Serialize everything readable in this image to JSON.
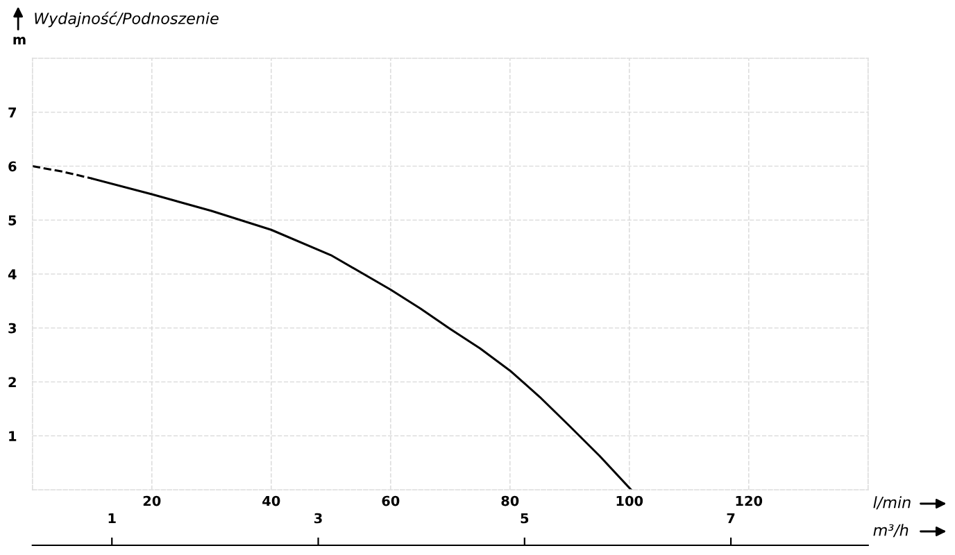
{
  "chart_data": {
    "type": "line",
    "title": "Wydajność/Podnoszenie",
    "ylabel": "m",
    "xlabel": "l/min",
    "x2label": "m³/h",
    "series": [
      {
        "color": "#000000",
        "line_style": "dashed",
        "x": [
          0,
          5,
          10
        ],
        "values": [
          6.0,
          5.9,
          5.77
        ]
      },
      {
        "color": "#000000",
        "line_style": "solid",
        "x": [
          10,
          20,
          30,
          40,
          50,
          60,
          65,
          70,
          75,
          80,
          85,
          90,
          95,
          100.3
        ],
        "values": [
          5.77,
          5.48,
          5.17,
          4.82,
          4.35,
          3.71,
          3.36,
          2.98,
          2.62,
          2.21,
          1.72,
          1.18,
          0.63,
          0
        ]
      }
    ],
    "xlim": [
      0,
      140
    ],
    "xticks": [
      20,
      40,
      60,
      80,
      100,
      120
    ],
    "ylim": [
      0,
      8
    ],
    "yticks": [
      1,
      2,
      3,
      4,
      5,
      6,
      7
    ],
    "x2lim": [
      0.23,
      8.33
    ],
    "x2ticks": [
      1,
      3,
      5,
      7
    ],
    "grid": true,
    "marker": "none",
    "legend": false
  }
}
